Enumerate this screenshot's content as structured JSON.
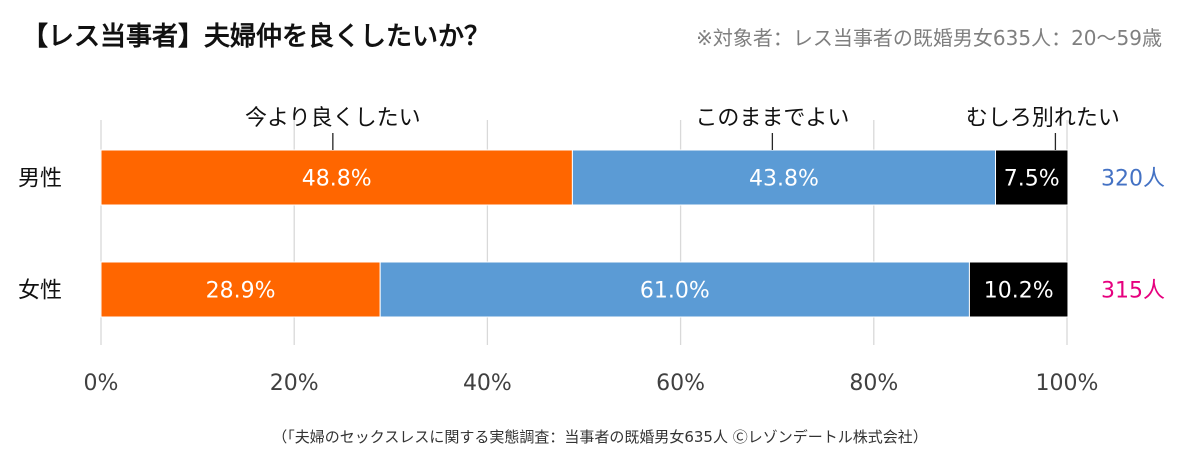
{
  "title": "【レス当事者】夫婦仲を良くしたいか？",
  "subtitle": "※対象者：レス当事者の既婚男女635人：20〜59歳",
  "source": "（「夫婦のセックスレスに関する実態調査：当事者の既婚男女635人 Ⓒレゾンデートル株式会社）",
  "chart_data": {
    "type": "bar",
    "orientation": "horizontal",
    "stacked": true,
    "categories": [
      "男性",
      "女性"
    ],
    "series": [
      {
        "name": "今より良くしたい",
        "values": [
          48.8,
          28.9
        ],
        "labels": [
          "48.8%",
          "28.9%"
        ],
        "color": "#ff6600",
        "label_color": "#ffffff"
      },
      {
        "name": "このままでよい",
        "values": [
          43.8,
          61.0
        ],
        "labels": [
          "43.8%",
          "61.0%"
        ],
        "color": "#5b9bd5",
        "label_color": "#ffffff"
      },
      {
        "name": "むしろ別れたい",
        "values": [
          7.5,
          10.2
        ],
        "labels": [
          "7.5%",
          "10.2%"
        ],
        "color": "#000000",
        "label_color": "#ffffff"
      }
    ],
    "counts": [
      "320人",
      "315人"
    ],
    "count_colors": [
      "#4472c4",
      "#e6007e"
    ],
    "xlim": [
      0,
      100
    ],
    "xticks": [
      0,
      20,
      40,
      60,
      80,
      100
    ],
    "xtick_labels": [
      "0%",
      "20%",
      "40%",
      "60%",
      "80%",
      "100%"
    ],
    "grid": true,
    "grid_color": "#d9d9d9",
    "legend": "callouts above first bar"
  }
}
